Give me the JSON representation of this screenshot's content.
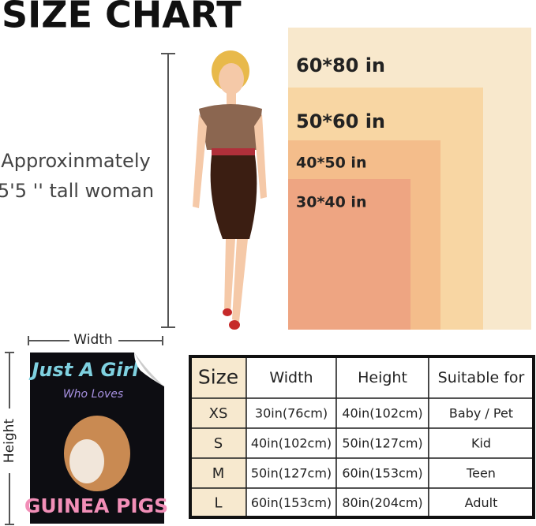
{
  "header": {
    "title": "SIZE CHART"
  },
  "woman": {
    "lines": [
      "Approxinmately",
      "5'5 '' tall woman"
    ]
  },
  "blankets": [
    "60*80 in",
    "50*60 in",
    "40*50 in",
    "30*40 in"
  ],
  "poster": {
    "width_label": "Width",
    "height_label": "Height",
    "lines": [
      "Just A Girl",
      "Who Loves",
      "GUINEA PIGS"
    ]
  },
  "table": {
    "header": [
      "Size",
      "Width",
      "Height",
      "Suitable for"
    ],
    "rows": [
      [
        "XS",
        "30in(76cm)",
        "40in(102cm)",
        "Baby / Pet"
      ],
      [
        "S",
        "40in(102cm)",
        "50in(127cm)",
        "Kid"
      ],
      [
        "M",
        "50in(127cm)",
        "60in(153cm)",
        "Teen"
      ],
      [
        "L",
        "60in(153cm)",
        "80in(204cm)",
        "Adult"
      ]
    ]
  }
}
